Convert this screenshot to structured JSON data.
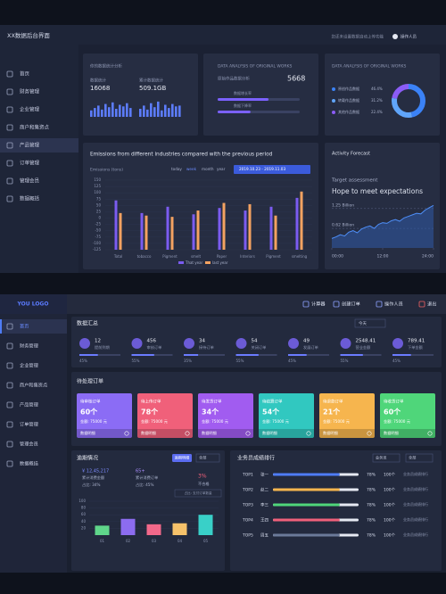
{
  "top": {
    "title": "XX数据后台界面",
    "notice": "您还未设置数据自动上传功能",
    "user": "操作人员",
    "menu": [
      "首页",
      "财务管理",
      "企业管理",
      "商户和集资点",
      "产品管理",
      "订单管理",
      "管理会员",
      "数据概括"
    ],
    "stats": {
      "title": "你的数据统计分析",
      "items": [
        {
          "label": "数据统计",
          "value": "16068"
        },
        {
          "label": "累计数据统计",
          "value": "509.1GB"
        }
      ],
      "bars_a": [
        40,
        55,
        70,
        45,
        80,
        60,
        90,
        50,
        75,
        65,
        85,
        55
      ],
      "bars_b": [
        50,
        70,
        45,
        85,
        60,
        95,
        40,
        75,
        55,
        80,
        65,
        70
      ]
    },
    "analysis": {
      "title": "DATA ANALYSIS OF ORIGINAL WORKS",
      "subtitle": "原始作品数据分析",
      "value": "5668",
      "progress": [
        {
          "label": "数据增长率",
          "value": 62
        },
        {
          "label": "数据下降率",
          "value": 40
        }
      ]
    },
    "share": {
      "title": "DATA ANALYSIS OF ORIGINAL WORKS",
      "segments": [
        {
          "name": "原创作品数据",
          "value": 46.4,
          "value_label": "46.4%",
          "color": "#3b82f6"
        },
        {
          "name": "转载作品数据",
          "value": 31.2,
          "value_label": "31.2%",
          "color": "#60a5fa"
        },
        {
          "name": "其他作品数据",
          "value": 22.4,
          "value_label": "22.4%",
          "color": "#8b5cf6"
        }
      ]
    },
    "emissions": {
      "type": "bar",
      "title": "Emissions from different industries compared with the previous period",
      "axis_label": "Emissions (tons)",
      "tabs": [
        "today",
        "week",
        "month",
        "year"
      ],
      "date": "2019.10.23 - 2019.11.03",
      "categories": [
        "Total",
        "tobacco",
        "Pigment",
        "smelt",
        "Paper",
        "Interiors",
        "Pigment",
        "smelting"
      ],
      "series": [
        {
          "name": "That year",
          "color": "#7b5cf0",
          "values": [
            70,
            20,
            45,
            15,
            40,
            30,
            45,
            80
          ]
        },
        {
          "name": "last year",
          "color": "#f4a261",
          "values": [
            20,
            10,
            5,
            30,
            60,
            55,
            10,
            105
          ]
        }
      ],
      "ylim": [
        -125,
        150
      ],
      "yticks": [
        -125,
        -100,
        -75,
        -50,
        -25,
        0,
        25,
        50,
        75,
        100,
        125,
        150
      ]
    },
    "forecast": {
      "type": "area",
      "title": "Activity Forecast",
      "subtitle": "Target assessment",
      "headline": "Hope to meet expectations",
      "x": [
        0,
        1,
        2,
        3,
        4,
        5,
        6,
        7,
        8,
        9,
        10,
        11,
        12,
        13,
        14,
        15,
        16,
        17,
        18,
        19,
        20,
        21,
        22,
        23,
        24
      ],
      "values": [
        0.3,
        0.35,
        0.42,
        0.38,
        0.5,
        0.55,
        0.48,
        0.6,
        0.66,
        0.7,
        0.62,
        0.75,
        0.8,
        0.78,
        0.86,
        0.9,
        0.85,
        0.95,
        1.0,
        1.05,
        1.1,
        1.08,
        1.2,
        1.28,
        1.35
      ],
      "xlim": [
        0,
        24
      ],
      "xticks": [
        {
          "value": 0,
          "label": "00:00"
        },
        {
          "value": 12,
          "label": "12:00"
        },
        {
          "value": 24,
          "label": "24:00"
        }
      ],
      "ylim": [
        0,
        1.5
      ],
      "yticks": [
        {
          "value": 0.62,
          "label": "0.62 Billion"
        },
        {
          "value": 1.25,
          "label": "1.25 Billion"
        }
      ]
    }
  },
  "bottom": {
    "logo": "YOU LOGO",
    "actions": [
      "计算器",
      "创建订单",
      "操作人员",
      "退出"
    ],
    "menu": [
      "首页",
      "财务管理",
      "企业管理",
      "商户和集资点",
      "产品管理",
      "订单管理",
      "管理会员",
      "数据概括"
    ],
    "summary": {
      "title": "数据汇总",
      "filter": "今天",
      "items": [
        {
          "value": 12,
          "label": "提前到期",
          "pct": 45,
          "pct_label": "45%"
        },
        {
          "value": 456,
          "label": "审核订单",
          "pct": 55,
          "pct_label": "55%"
        },
        {
          "value": 34,
          "label": "接待订单",
          "pct": 35,
          "pct_label": "35%"
        },
        {
          "value": 54,
          "label": "关闭订单",
          "pct": 55,
          "pct_label": "55%"
        },
        {
          "value": 49,
          "label": "发展订单",
          "pct": 45,
          "pct_label": "45%"
        },
        {
          "value": 2548.41,
          "label": "营业金额",
          "pct": 55,
          "pct_label": "55%"
        },
        {
          "value": 789.41,
          "label": "下单金额",
          "pct": 45,
          "pct_label": "45%"
        }
      ]
    },
    "pending": {
      "title": "待处理订单",
      "cards": [
        {
          "name": "待审核订单",
          "count": "60个",
          "amount": "金额: 75000 元",
          "link": "数据明细",
          "color": "#8b6cf5"
        },
        {
          "name": "待上传订单",
          "count": "78个",
          "amount": "金额: 75000 元",
          "link": "数据明细",
          "color": "#f0607a"
        },
        {
          "name": "待发货订单",
          "count": "34个",
          "amount": "金额: 75000 元",
          "link": "数据明细",
          "color": "#a15cf0"
        },
        {
          "name": "待结算订单",
          "count": "54个",
          "amount": "金额: 75000 元",
          "link": "数据明细",
          "color": "#31c8c0"
        },
        {
          "name": "待退款订单",
          "count": "21个",
          "amount": "金额: 75000 元",
          "link": "数据明细",
          "color": "#f6b54e"
        },
        {
          "name": "待收货订单",
          "count": "60个",
          "amount": "金额: 75000 元",
          "link": "数据明细",
          "color": "#4fd67a"
        }
      ]
    },
    "overdue": {
      "title": "逾期情况",
      "tag": "逾期明细",
      "filter": "全部",
      "amount": "¥ 12,45,217",
      "amount_label": "累计消费金额",
      "amount_pct": "占比: 34%",
      "orders": "65+",
      "orders_label": "累计消费订单",
      "orders_pct": "占比: 45%",
      "donut_value": "3%",
      "donut_label": "不合格",
      "note": "占比: 支付订单数量",
      "bars": {
        "type": "bar",
        "categories": [
          "01",
          "02",
          "03",
          "04",
          "05"
        ],
        "values": [
          28,
          48,
          32,
          35,
          60
        ],
        "colors": [
          "#5fd68a",
          "#8c6cf0",
          "#f2688a",
          "#f6c26a",
          "#39d0c8"
        ],
        "ylim": [
          0,
          100
        ],
        "yticks": [
          20,
          40,
          60,
          80,
          100
        ]
      }
    },
    "ranking": {
      "title": "业务员成绩排行",
      "filters": [
        "业务员",
        "全部"
      ],
      "rows": [
        {
          "rank": "TOP1",
          "name": "张一",
          "pct": 78,
          "pct_label": "78%",
          "count": "100个",
          "note": "业务员成绩排行",
          "color": "#4e7cf6"
        },
        {
          "rank": "TOP2",
          "name": "赵二",
          "pct": 78,
          "pct_label": "78%",
          "count": "100个",
          "note": "业务员成绩排行",
          "color": "#f6b54e"
        },
        {
          "rank": "TOP3",
          "name": "李三",
          "pct": 78,
          "pct_label": "78%",
          "count": "100个",
          "note": "业务员成绩排行",
          "color": "#4fd67a"
        },
        {
          "rank": "TOP4",
          "name": "王四",
          "pct": 78,
          "pct_label": "78%",
          "count": "100个",
          "note": "业务员成绩排行",
          "color": "#f0607a"
        },
        {
          "rank": "TOP5",
          "name": "周五",
          "pct": 78,
          "pct_label": "78%",
          "count": "100个",
          "note": "业务员成绩排行",
          "color": "#6b7a99"
        }
      ]
    }
  }
}
